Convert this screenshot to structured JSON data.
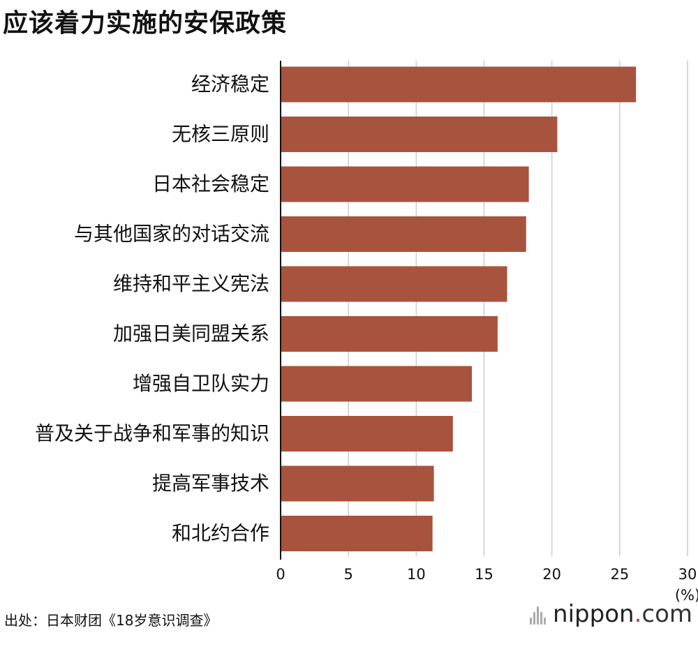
{
  "title": "应该着力实施的安保政策",
  "source": "出处：日本财团《18岁意识调查》",
  "logo": {
    "name": "nippon",
    "dot": ".",
    "tld": "com"
  },
  "colors": {
    "bar": "#a8533e",
    "grid": "#cccccc",
    "axis": "#111111"
  },
  "chart_data": {
    "type": "bar",
    "orientation": "horizontal",
    "categories": [
      "经济稳定",
      "无核三原则",
      "日本社会稳定",
      "与其他国家的对话交流",
      "维持和平主义宪法",
      "加强日美同盟关系",
      "增强自卫队实力",
      "普及关于战争和军事的知识",
      "提高军事技术",
      "和北约合作"
    ],
    "values": [
      26.2,
      20.4,
      18.3,
      18.1,
      16.7,
      16.0,
      14.1,
      12.7,
      11.3,
      11.2
    ],
    "xlim": [
      0,
      30
    ],
    "xticks": [
      "0",
      "5",
      "10",
      "15",
      "20",
      "25",
      "30"
    ],
    "unit": "(%)",
    "grid": true
  }
}
